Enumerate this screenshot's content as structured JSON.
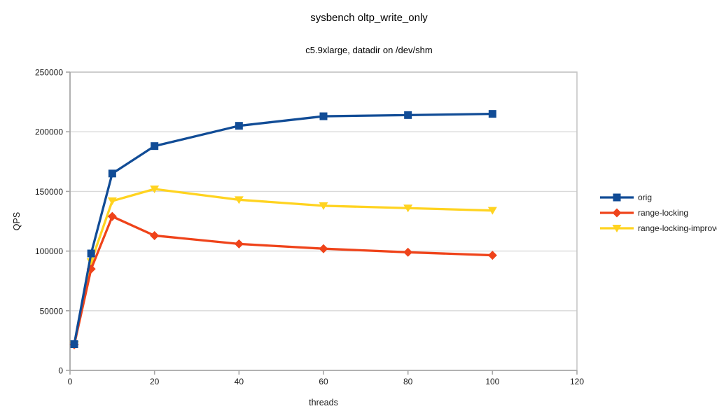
{
  "chart_data": {
    "type": "line",
    "title": "sysbench oltp_write_only",
    "subtitle": "c5.9xlarge, datadir on /dev/shm",
    "xlabel": "threads",
    "ylabel": "QPS",
    "xlim": [
      0,
      120
    ],
    "ylim": [
      0,
      250000
    ],
    "xticks": [
      0,
      20,
      40,
      60,
      80,
      100,
      120
    ],
    "yticks": [
      0,
      50000,
      100000,
      150000,
      200000,
      250000
    ],
    "grid": "horizontal",
    "legend_position": "right",
    "x": [
      1,
      5,
      10,
      20,
      40,
      60,
      80,
      100
    ],
    "series": [
      {
        "name": "orig",
        "color": "#114C96",
        "marker": "square",
        "values": [
          22000,
          98000,
          165000,
          188000,
          205000,
          213000,
          214000,
          215000
        ]
      },
      {
        "name": "range-locking",
        "color": "#EF431A",
        "marker": "diamond",
        "values": [
          21500,
          85000,
          129000,
          113000,
          106000,
          102000,
          99000,
          96500
        ]
      },
      {
        "name": "range-locking-improved",
        "color": "#FFD320",
        "marker": "triangle-down",
        "values": [
          21500,
          91000,
          142000,
          152000,
          143000,
          138000,
          136000,
          134000
        ]
      }
    ],
    "style_colors": {
      "grid": "#d9d9d9",
      "plot_border": "#c6c6c6",
      "axis": "#a6a6a6",
      "tick_label": "#1a1a1a"
    }
  }
}
